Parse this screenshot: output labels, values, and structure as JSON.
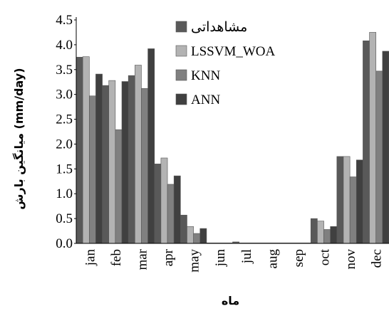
{
  "chart_data": {
    "type": "bar",
    "categories": [
      "jan",
      "feb",
      "mar",
      "apr",
      "may",
      "jun",
      "jul",
      "aug",
      "sep",
      "oct",
      "nov",
      "dec"
    ],
    "series": [
      {
        "name": "مشاهداتی",
        "color": "#595959",
        "values": [
          3.75,
          3.18,
          3.38,
          1.6,
          0.57,
          0.01,
          0.03,
          0.01,
          0.01,
          0.5,
          1.75,
          4.08
        ]
      },
      {
        "name": "LSSVM_WOA",
        "color": "#b3b3b3",
        "values": [
          3.76,
          3.28,
          3.59,
          1.72,
          0.34,
          0.01,
          0.01,
          0.01,
          0.01,
          0.45,
          1.75,
          4.25
        ]
      },
      {
        "name": "KNN",
        "color": "#808080",
        "values": [
          2.97,
          2.29,
          3.12,
          1.19,
          0.2,
          0.01,
          0.01,
          0.01,
          0.01,
          0.28,
          1.34,
          3.47
        ]
      },
      {
        "name": "ANN",
        "color": "#404040",
        "values": [
          3.41,
          3.26,
          3.92,
          1.36,
          0.3,
          0.01,
          0.01,
          0.01,
          0.01,
          0.34,
          1.68,
          3.87
        ]
      }
    ],
    "ylim": [
      0,
      4.5
    ],
    "yticks": [
      "0.0",
      "0.5",
      "1.0",
      "1.5",
      "2.0",
      "2.5",
      "3.0",
      "3.5",
      "4.0",
      "4.5"
    ],
    "ylabel": "میانگین بارش (mm/day)",
    "xlabel": "ماه",
    "legend_position": "top-center",
    "grid": false
  }
}
